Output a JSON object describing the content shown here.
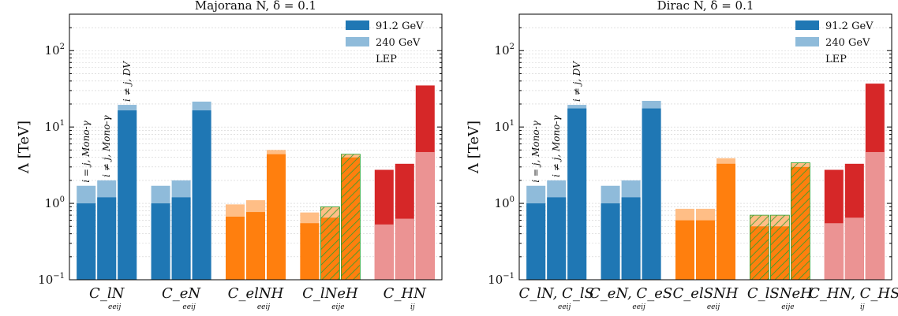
{
  "chart_data": [
    {
      "type": "bar",
      "title": "Majorana N, δ = 0.1",
      "ylabel": "Λ [TeV]",
      "yscale": "log",
      "ylim": [
        0.1,
        300
      ],
      "yticks": [
        "10^-1",
        "10^0",
        "10^1",
        "10^2"
      ],
      "legend": {
        "position": "top-right",
        "entries": [
          "91.2 GeV",
          "240 GeV",
          "LEP"
        ]
      },
      "grid": "horizontal minor dotted",
      "groups": [
        {
          "label": "C_lN",
          "sublabel": "eeij",
          "color": "#1f77b4",
          "bars": [
            {
              "z": 1.0,
              "ee240": 1.7,
              "lep": null,
              "hatch": false,
              "note": "i = j, Mono-γ"
            },
            {
              "z": 1.2,
              "ee240": 2.0,
              "lep": null,
              "hatch": false,
              "note": "i ≠ j, Mono-γ"
            },
            {
              "z": 16.5,
              "ee240": 19.5,
              "lep": null,
              "hatch": false,
              "note": "i ≠ j, DV"
            }
          ]
        },
        {
          "label": "C_eN",
          "sublabel": "eeij",
          "color": "#1f77b4",
          "bars": [
            {
              "z": 1.0,
              "ee240": 1.7,
              "lep": null,
              "hatch": false
            },
            {
              "z": 1.2,
              "ee240": 2.0,
              "lep": null,
              "hatch": false
            },
            {
              "z": 16.5,
              "ee240": 21.5,
              "lep": null,
              "hatch": false
            }
          ]
        },
        {
          "label": "C_elNH",
          "sublabel": "eeij",
          "color": "#ff7f0e",
          "bars": [
            {
              "z": 0.67,
              "ee240": 0.97,
              "lep": null,
              "hatch": false
            },
            {
              "z": 0.77,
              "ee240": 1.1,
              "lep": null,
              "hatch": false
            },
            {
              "z": 4.4,
              "ee240": 5.0,
              "lep": null,
              "hatch": false
            }
          ]
        },
        {
          "label": "C_lNeH",
          "sublabel": "eije",
          "color": "#ff7f0e",
          "bars": [
            {
              "z": 0.55,
              "ee240": 0.76,
              "lep": null,
              "hatch": false
            },
            {
              "z": 0.65,
              "ee240": 0.9,
              "lep": null,
              "hatch": true
            },
            {
              "z": 4.0,
              "ee240": 4.4,
              "lep": null,
              "hatch": true
            }
          ]
        },
        {
          "label": "C_HN",
          "sublabel": "ij",
          "color": "#d62728",
          "bars": [
            {
              "z": 0.53,
              "ee240": null,
              "lep": 2.75,
              "hatch": false
            },
            {
              "z": 0.63,
              "ee240": null,
              "lep": 3.3,
              "hatch": false
            },
            {
              "z": 4.7,
              "ee240": null,
              "lep": 35.0,
              "hatch": false
            }
          ]
        }
      ]
    },
    {
      "type": "bar",
      "title": "Dirac N, δ = 0.1",
      "ylabel": "Λ [TeV]",
      "yscale": "log",
      "ylim": [
        0.1,
        300
      ],
      "yticks": [
        "10^-1",
        "10^0",
        "10^1",
        "10^2"
      ],
      "legend": {
        "position": "top-right",
        "entries": [
          "91.2 GeV",
          "240 GeV",
          "LEP"
        ]
      },
      "grid": "horizontal minor dotted",
      "groups": [
        {
          "label": "C_lN, C_lS",
          "sublabel": "eeij",
          "color": "#1f77b4",
          "bars": [
            {
              "z": 1.0,
              "ee240": 1.7,
              "lep": null,
              "hatch": false,
              "note": "i = j, Mono-γ"
            },
            {
              "z": 1.2,
              "ee240": 2.0,
              "lep": null,
              "hatch": false,
              "note": "i ≠ j, Mono-γ"
            },
            {
              "z": 17.5,
              "ee240": 19.5,
              "lep": null,
              "hatch": false,
              "note": "i ≠ j, DV"
            }
          ]
        },
        {
          "label": "C_eN, C_eS",
          "sublabel": "eeij",
          "color": "#1f77b4",
          "bars": [
            {
              "z": 1.0,
              "ee240": 1.7,
              "lep": null,
              "hatch": false
            },
            {
              "z": 1.2,
              "ee240": 2.0,
              "lep": null,
              "hatch": false
            },
            {
              "z": 17.5,
              "ee240": 22.0,
              "lep": null,
              "hatch": false
            }
          ]
        },
        {
          "label": "C_elSNH",
          "sublabel": "eeij",
          "color": "#ff7f0e",
          "bars": [
            {
              "z": 0.6,
              "ee240": 0.85,
              "lep": null,
              "hatch": false
            },
            {
              "z": 0.6,
              "ee240": 0.85,
              "lep": null,
              "hatch": false
            },
            {
              "z": 3.3,
              "ee240": 3.9,
              "lep": null,
              "hatch": false
            }
          ]
        },
        {
          "label": "C_lSNeH",
          "sublabel": "eije",
          "color": "#ff7f0e",
          "bars": [
            {
              "z": 0.5,
              "ee240": 0.7,
              "lep": null,
              "hatch": true
            },
            {
              "z": 0.5,
              "ee240": 0.7,
              "lep": null,
              "hatch": true
            },
            {
              "z": 3.0,
              "ee240": 3.4,
              "lep": null,
              "hatch": true
            }
          ]
        },
        {
          "label": "C_HN, C_HS",
          "sublabel": "ij",
          "color": "#d62728",
          "bars": [
            {
              "z": 0.55,
              "ee240": null,
              "lep": 2.75,
              "hatch": false
            },
            {
              "z": 0.65,
              "ee240": null,
              "lep": 3.3,
              "hatch": false
            },
            {
              "z": 4.7,
              "ee240": null,
              "lep": 37.0,
              "hatch": false
            }
          ]
        }
      ]
    }
  ],
  "colors": {
    "blue": "#1f77b4",
    "blue_light": "#8fbbda",
    "orange": "#ff7f0e",
    "orange_light": "#ffbe86",
    "red": "#d62728",
    "red_light": "#eb9393",
    "hatch": "#2ca02c"
  }
}
